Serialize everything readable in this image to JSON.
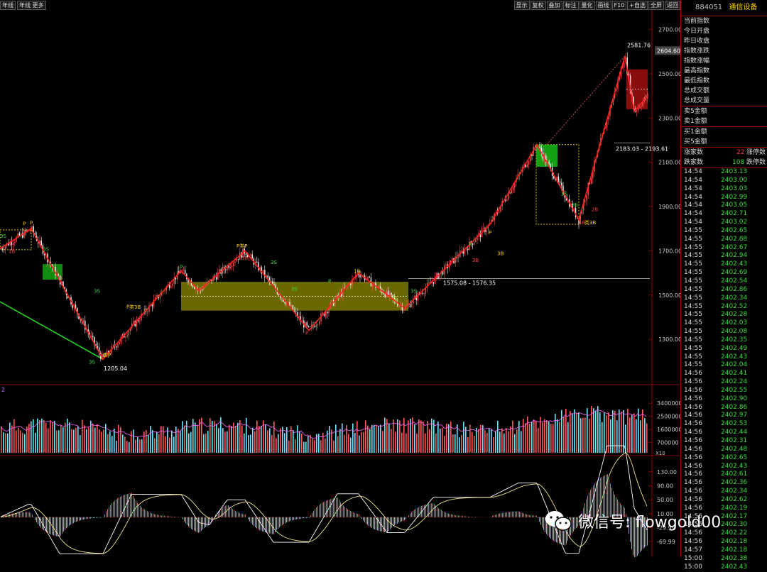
{
  "topbar": {
    "tabs": [
      "年线",
      "年线 更多"
    ],
    "tools": [
      "显示",
      "复权",
      "叠加",
      "标注",
      "量化",
      "画线",
      "F10",
      "+自选",
      "全屏",
      "返回"
    ]
  },
  "side": {
    "code": "884051",
    "name": "通信设备",
    "labels": [
      "当前指数",
      "今日开盘",
      "昨日收盘",
      "指数涨跌",
      "指数涨幅",
      "最高指数",
      "最低指数",
      "总成交额",
      "总成交量"
    ],
    "order_labels": [
      "卖5金额",
      "卖1金额",
      "买1金额",
      "买5金额"
    ],
    "up_label": "涨家数",
    "up_count": "22",
    "up_stop": "涨停数",
    "down_label": "跌家数",
    "down_count": "108",
    "down_stop": "跌停数",
    "ticks": [
      {
        "t": "14:54",
        "p": "2403.13",
        "c": "dn"
      },
      {
        "t": "14:54",
        "p": "2403.00",
        "c": "dn"
      },
      {
        "t": "14:54",
        "p": "2403.03",
        "c": "dn"
      },
      {
        "t": "14:54",
        "p": "2402.99",
        "c": "dn"
      },
      {
        "t": "14:54",
        "p": "2403.05",
        "c": "dn"
      },
      {
        "t": "14:54",
        "p": "2402.71",
        "c": "dn"
      },
      {
        "t": "14:54",
        "p": "2403.02",
        "c": "dn"
      },
      {
        "t": "14:55",
        "p": "2402.65",
        "c": "dn"
      },
      {
        "t": "14:55",
        "p": "2402.88",
        "c": "dn"
      },
      {
        "t": "14:55",
        "p": "2402.67",
        "c": "dn"
      },
      {
        "t": "14:55",
        "p": "2402.94",
        "c": "dn"
      },
      {
        "t": "14:55",
        "p": "2402.43",
        "c": "dn"
      },
      {
        "t": "14:55",
        "p": "2402.69",
        "c": "dn"
      },
      {
        "t": "14:55",
        "p": "2402.54",
        "c": "dn"
      },
      {
        "t": "14:55",
        "p": "2402.86",
        "c": "dn"
      },
      {
        "t": "14:55",
        "p": "2402.34",
        "c": "dn"
      },
      {
        "t": "14:55",
        "p": "2402.52",
        "c": "dn"
      },
      {
        "t": "14:55",
        "p": "2402.28",
        "c": "dn"
      },
      {
        "t": "14:55",
        "p": "2402.03",
        "c": "dn"
      },
      {
        "t": "14:55",
        "p": "2402.08",
        "c": "dn"
      },
      {
        "t": "14:55",
        "p": "2402.35",
        "c": "dn"
      },
      {
        "t": "14:55",
        "p": "2402.49",
        "c": "dn"
      },
      {
        "t": "14:55",
        "p": "2402.43",
        "c": "dn"
      },
      {
        "t": "14:55",
        "p": "2402.04",
        "c": "dn"
      },
      {
        "t": "14:56",
        "p": "2402.41",
        "c": "dn"
      },
      {
        "t": "14:56",
        "p": "2402.24",
        "c": "dn"
      },
      {
        "t": "14:56",
        "p": "2402.55",
        "c": "dn"
      },
      {
        "t": "14:56",
        "p": "2402.90",
        "c": "dn"
      },
      {
        "t": "14:56",
        "p": "2402.86",
        "c": "dn"
      },
      {
        "t": "14:56",
        "p": "2402.97",
        "c": "dn"
      },
      {
        "t": "14:56",
        "p": "2402.53",
        "c": "dn"
      },
      {
        "t": "14:56",
        "p": "2402.44",
        "c": "dn"
      },
      {
        "t": "14:56",
        "p": "2402.31",
        "c": "dn"
      },
      {
        "t": "14:56",
        "p": "2402.48",
        "c": "dn"
      },
      {
        "t": "14:56",
        "p": "2402.65",
        "c": "dn"
      },
      {
        "t": "14:56",
        "p": "2402.43",
        "c": "dn"
      },
      {
        "t": "14:56",
        "p": "2402.61",
        "c": "dn"
      },
      {
        "t": "14:56",
        "p": "2402.36",
        "c": "dn"
      },
      {
        "t": "14:56",
        "p": "2402.34",
        "c": "dn"
      },
      {
        "t": "14:56",
        "p": "2402.62",
        "c": "dn"
      },
      {
        "t": "14:56",
        "p": "2402.19",
        "c": "dn"
      },
      {
        "t": "14:56",
        "p": "2402.17",
        "c": "dn"
      },
      {
        "t": "14:56",
        "p": "2402.30",
        "c": "dn"
      },
      {
        "t": "14:56",
        "p": "2402.22",
        "c": "dn"
      },
      {
        "t": "14:56",
        "p": "2402.18",
        "c": "dn"
      },
      {
        "t": "14:57",
        "p": "2402.18",
        "c": "dn"
      },
      {
        "t": "15:00",
        "p": "2402.38",
        "c": "dn"
      },
      {
        "t": "15:00",
        "p": "2402.43",
        "c": "dn"
      }
    ]
  },
  "watermark": "微信号: flowgold00",
  "colors": {
    "up": "#ff3b3b",
    "down": "#3bdc3b",
    "zz_line": "#ff2020",
    "box_yellow": "#8c8c00",
    "box_red": "#a01010",
    "ma_yellow": "#f0e68c",
    "ma_white": "#ffffff"
  },
  "chart_data": {
    "type": "candlestick",
    "price_axis": {
      "ticks": [
        2700,
        2500,
        2300,
        2100,
        1900,
        1700,
        1500,
        1300
      ],
      "range": [
        1150,
        2750
      ],
      "current_label": "2604.60"
    },
    "annotations": {
      "high_label": "2581.76",
      "low_label": "1205.04",
      "range_a": "1575.08 - 1576.35",
      "range_b": "2183.03 - 2193.61",
      "signal_labels": [
        "3S",
        "P",
        "P",
        "1B",
        "3S",
        "3S",
        "类P",
        "P",
        "类3B",
        "3S",
        "P",
        "P类P",
        "3B",
        "3S",
        "3S",
        "P",
        "P",
        "1B",
        "3S",
        "P",
        "3S",
        "P",
        "3B",
        "3B",
        "3S",
        "2B",
        "1B",
        "类3B"
      ]
    },
    "zigzag": [
      [
        0,
        1710
      ],
      [
        44,
        1800
      ],
      [
        145,
        1210
      ],
      [
        255,
        1610
      ],
      [
        280,
        1520
      ],
      [
        345,
        1700
      ],
      [
        435,
        1340
      ],
      [
        505,
        1600
      ],
      [
        570,
        1440
      ],
      [
        690,
        1820
      ],
      [
        756,
        2180
      ],
      [
        815,
        1840
      ],
      [
        880,
        2580
      ],
      [
        893,
        2330
      ],
      [
        912,
        2400
      ]
    ],
    "volume_axis": {
      "ticks": [
        3400000,
        2500000,
        1600000,
        700000
      ],
      "label": "X10",
      "panel_label": "2"
    },
    "macd_axis": {
      "ticks": [
        130,
        90,
        50,
        10,
        -29.99,
        -69.99
      ]
    }
  }
}
